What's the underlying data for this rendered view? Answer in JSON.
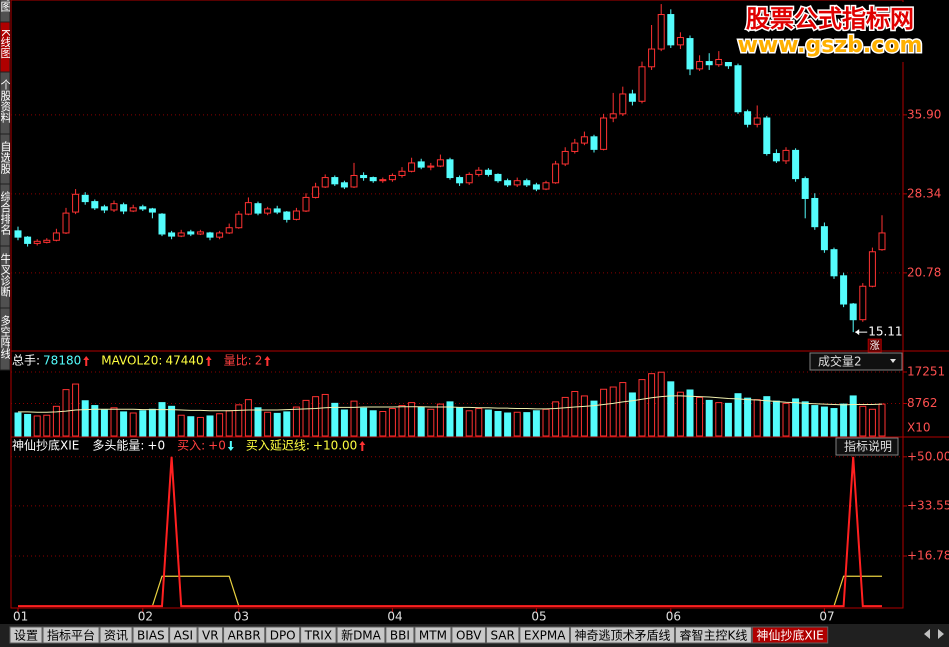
{
  "chart_data": [
    {
      "type": "candlestick",
      "up_color": "#ff3232",
      "down_color": "#54fcfc",
      "tag": "涨",
      "ylim": [
        13.4,
        46.7
      ],
      "yticks": [
        20.78,
        28.34,
        {
          "value": 35.9,
          "label": "35.90"
        }
      ],
      "grid": true,
      "open": [
        24.8,
        24.2,
        23.6,
        23.7,
        23.9,
        24.6,
        26.6,
        28.2,
        27.6,
        27.1,
        26.8,
        27.3,
        26.7,
        27.1,
        26.9,
        26.4,
        24.6,
        24.3,
        24.7,
        24.5,
        24.6,
        24.2,
        24.6,
        25.1,
        26.4,
        27.4,
        26.5,
        26.9,
        26.6,
        25.9,
        26.7,
        28.0,
        29.0,
        29.9,
        29.4,
        29.0,
        30.1,
        29.9,
        29.6,
        29.7,
        30.1,
        30.5,
        31.4,
        30.9,
        31.0,
        31.6,
        29.9,
        29.4,
        30.2,
        30.6,
        30.2,
        29.6,
        29.2,
        29.6,
        29.2,
        28.8,
        29.4,
        31.2,
        32.4,
        33.2,
        33.8,
        32.6,
        35.6,
        36.0,
        37.9,
        37.2,
        40.5,
        42.2,
        45.5,
        42.6,
        43.2,
        40.3,
        41.0,
        40.7,
        41.2,
        40.6,
        36.2,
        35.0,
        35.6,
        32.2,
        31.5,
        32.5,
        29.8,
        27.9,
        25.2,
        23.0,
        20.5,
        17.8,
        16.3,
        19.5,
        23.0
      ],
      "high": [
        25.2,
        24.3,
        24.0,
        24.1,
        25.0,
        27.0,
        28.8,
        28.5,
        27.8,
        27.3,
        27.7,
        27.5,
        27.3,
        27.3,
        27.0,
        26.5,
        24.8,
        24.9,
        24.9,
        24.9,
        24.7,
        24.8,
        25.5,
        26.7,
        28.0,
        27.6,
        27.1,
        27.2,
        26.7,
        27.0,
        28.4,
        29.4,
        30.2,
        30.1,
        29.6,
        31.3,
        30.4,
        30.0,
        29.9,
        30.3,
        30.9,
        31.8,
        31.7,
        31.3,
        32.1,
        31.8,
        30.1,
        30.4,
        30.9,
        30.8,
        30.3,
        29.8,
        29.9,
        29.8,
        29.4,
        29.6,
        31.5,
        32.8,
        33.6,
        34.3,
        34.0,
        36.0,
        38.0,
        38.6,
        38.3,
        41.0,
        44.5,
        46.5,
        46.0,
        43.8,
        43.5,
        41.6,
        41.8,
        42.0,
        41.5,
        40.8,
        36.4,
        36.8,
        35.8,
        32.6,
        32.8,
        32.7,
        30.0,
        28.4,
        25.6,
        23.2,
        20.8,
        17.9,
        19.8,
        23.2,
        26.3
      ],
      "low": [
        23.9,
        23.3,
        23.4,
        23.6,
        23.8,
        24.5,
        26.4,
        27.3,
        26.8,
        26.5,
        26.6,
        26.4,
        26.6,
        26.7,
        26.0,
        24.3,
        24.0,
        24.2,
        24.3,
        24.4,
        23.9,
        24.0,
        24.5,
        25.0,
        26.3,
        26.3,
        26.3,
        26.4,
        25.6,
        25.8,
        26.6,
        27.9,
        28.9,
        29.1,
        28.8,
        28.9,
        29.6,
        29.4,
        29.4,
        29.5,
        29.9,
        30.4,
        30.7,
        30.6,
        30.9,
        29.7,
        29.1,
        29.2,
        30.0,
        30.0,
        29.4,
        29.0,
        29.0,
        29.0,
        28.6,
        28.7,
        29.3,
        31.0,
        32.2,
        33.0,
        32.3,
        32.5,
        35.2,
        35.8,
        36.8,
        37.0,
        40.2,
        42.0,
        42.3,
        42.2,
        39.7,
        40.1,
        40.2,
        40.5,
        40.3,
        36.0,
        34.7,
        34.7,
        32.0,
        31.3,
        31.2,
        29.5,
        26.0,
        24.9,
        22.7,
        20.2,
        17.5,
        15.11,
        16.1,
        19.4,
        22.9
      ],
      "close": [
        24.2,
        23.6,
        23.8,
        23.9,
        24.6,
        26.5,
        28.3,
        27.6,
        27.0,
        26.8,
        27.4,
        26.7,
        27.0,
        26.9,
        26.6,
        24.5,
        24.3,
        24.6,
        24.5,
        24.7,
        24.2,
        24.6,
        25.1,
        26.4,
        27.5,
        26.5,
        26.9,
        26.6,
        25.9,
        26.7,
        28.0,
        29.0,
        29.9,
        29.3,
        29.0,
        30.1,
        29.9,
        29.6,
        29.7,
        30.1,
        30.5,
        31.3,
        30.9,
        31.0,
        31.6,
        29.9,
        29.4,
        30.2,
        30.6,
        30.2,
        29.6,
        29.2,
        29.6,
        29.2,
        28.8,
        29.4,
        31.2,
        32.4,
        33.2,
        33.8,
        32.6,
        35.6,
        36.0,
        37.9,
        37.2,
        40.5,
        42.2,
        45.5,
        42.6,
        43.3,
        40.3,
        41.0,
        40.7,
        41.2,
        40.6,
        36.2,
        35.0,
        35.6,
        32.2,
        31.5,
        32.5,
        29.8,
        27.9,
        25.2,
        23.0,
        20.5,
        17.8,
        16.3,
        19.5,
        22.8,
        24.6
      ]
    },
    {
      "type": "bar",
      "button": "成交量2",
      "unit": "X10",
      "header": [
        {
          "label": "总手:",
          "value": 78180,
          "color": "#54fcfc",
          "arrow": "up"
        },
        {
          "label": "MAVOL20:",
          "value": 47440,
          "color": "#ffff40",
          "arrow": "up"
        },
        {
          "label": "量比:",
          "value": 2,
          "color": "#ff4040",
          "arrow": "up"
        }
      ],
      "ylim": [
        0,
        22640
      ],
      "yticks": [
        8762,
        17251
      ],
      "grid": true,
      "series": [
        {
          "color": "#54fcfc",
          "values": [
            6200,
            5800,
            5400,
            5600,
            8000,
            12500,
            14000,
            9500,
            8200,
            7000,
            7600,
            6500,
            6200,
            6800,
            7200,
            9000,
            8000,
            5600,
            5200,
            5000,
            5400,
            6000,
            6800,
            8400,
            9800,
            7600,
            6400,
            6100,
            6500,
            7800,
            9600,
            10600,
            11200,
            8800,
            7000,
            9400,
            7500,
            6800,
            6600,
            7400,
            8200,
            9000,
            7800,
            7200,
            8600,
            9200,
            7600,
            6800,
            7400,
            7000,
            6600,
            6200,
            6400,
            6300,
            6800,
            7200,
            9200,
            10400,
            12000,
            10800,
            9400,
            12600,
            13200,
            14400,
            11600,
            15200,
            16800,
            17200,
            14600,
            11800,
            12400,
            10400,
            9600,
            9000,
            8800,
            11400,
            10200,
            9800,
            10600,
            9400,
            8800,
            10000,
            9200,
            8200,
            7800,
            7400,
            8600,
            10800,
            8000,
            7200,
            8600
          ]
        },
        {
          "type": "line",
          "color": "#f0f0b0",
          "values": [
            6500,
            6500,
            6400,
            6400,
            6500,
            6700,
            7000,
            7100,
            7200,
            7200,
            7200,
            7200,
            7200,
            7100,
            7100,
            7100,
            7100,
            7000,
            6900,
            6900,
            6800,
            6800,
            6800,
            6900,
            7000,
            7000,
            7000,
            7000,
            7100,
            7200,
            7300,
            7400,
            7600,
            7700,
            7700,
            7700,
            7800,
            7800,
            7800,
            7800,
            7900,
            7900,
            7900,
            7800,
            7800,
            7800,
            7700,
            7700,
            7600,
            7600,
            7500,
            7500,
            7400,
            7400,
            7300,
            7300,
            7400,
            7600,
            7800,
            8000,
            8200,
            8500,
            8800,
            9200,
            9500,
            9900,
            10300,
            10600,
            10800,
            10800,
            10700,
            10600,
            10500,
            10300,
            10100,
            10000,
            9800,
            9700,
            9500,
            9300,
            9100,
            9000,
            8800,
            8700,
            8600,
            8500,
            8400,
            8500,
            8500,
            8500,
            8600
          ]
        }
      ]
    },
    {
      "type": "line",
      "button": "指标说明",
      "header": [
        {
          "label": "神仙抄底XIE",
          "color": "#ffffff"
        },
        {
          "label": "多头能量:",
          "value": "+0",
          "color": "#ffffff"
        },
        {
          "label": "买入:",
          "value": "+0",
          "color": "#ff4040",
          "arrow": "down"
        },
        {
          "label": "买入延迟线:",
          "value": "+10.00",
          "color": "#ffff40",
          "arrow": "up"
        }
      ],
      "categories": [
        "01",
        null,
        null,
        null,
        null,
        null,
        null,
        null,
        null,
        null,
        null,
        null,
        null,
        "02",
        null,
        null,
        null,
        null,
        null,
        null,
        null,
        null,
        null,
        "03",
        null,
        null,
        null,
        null,
        null,
        null,
        null,
        null,
        null,
        null,
        null,
        null,
        null,
        null,
        null,
        "04",
        null,
        null,
        null,
        null,
        null,
        null,
        null,
        null,
        null,
        null,
        null,
        null,
        null,
        null,
        "05",
        null,
        null,
        null,
        null,
        null,
        null,
        null,
        null,
        null,
        null,
        null,
        null,
        null,
        "06",
        null,
        null,
        null,
        null,
        null,
        null,
        null,
        null,
        null,
        null,
        null,
        null,
        null,
        null,
        null,
        "07",
        null,
        null,
        null,
        null,
        null,
        null
      ],
      "ylim": [
        -0.3,
        56.3
      ],
      "yticks": [
        {
          "value": 16.78,
          "label": "+16.78"
        },
        {
          "value": 33.55,
          "label": "+33.55"
        },
        {
          "value": 50,
          "label": "+50.00"
        }
      ],
      "grid": true,
      "series": [
        {
          "color": "#e8d040",
          "values": [
            0,
            0,
            0,
            0,
            0,
            0,
            0,
            0,
            0,
            0,
            0,
            0,
            0,
            0,
            0,
            10,
            10,
            10,
            10,
            10,
            10,
            10,
            10,
            0,
            0,
            0,
            0,
            0,
            0,
            0,
            0,
            0,
            0,
            0,
            0,
            0,
            0,
            0,
            0,
            0,
            0,
            0,
            0,
            0,
            0,
            0,
            0,
            0,
            0,
            0,
            0,
            0,
            0,
            0,
            0,
            0,
            0,
            0,
            0,
            0,
            0,
            0,
            0,
            0,
            0,
            0,
            0,
            0,
            0,
            0,
            0,
            0,
            0,
            0,
            0,
            0,
            0,
            0,
            0,
            0,
            0,
            0,
            0,
            0,
            0,
            0,
            10,
            10,
            10,
            10,
            10
          ]
        },
        {
          "color": "#ff2020",
          "values": [
            0,
            0,
            0,
            0,
            0,
            0,
            0,
            0,
            0,
            0,
            0,
            0,
            0,
            0,
            0,
            0,
            50,
            0,
            0,
            0,
            0,
            0,
            0,
            0,
            0,
            0,
            0,
            0,
            0,
            0,
            0,
            0,
            0,
            0,
            0,
            0,
            0,
            0,
            0,
            0,
            0,
            0,
            0,
            0,
            0,
            0,
            0,
            0,
            0,
            0,
            0,
            0,
            0,
            0,
            0,
            0,
            0,
            0,
            0,
            0,
            0,
            0,
            0,
            0,
            0,
            0,
            0,
            0,
            0,
            0,
            0,
            0,
            0,
            0,
            0,
            0,
            0,
            0,
            0,
            0,
            0,
            0,
            0,
            0,
            0,
            0,
            0,
            50,
            0,
            0,
            0
          ]
        }
      ]
    }
  ],
  "watermark": {
    "title": "股票公式指标网",
    "url": "www.gszb.com"
  },
  "sidebar": [
    {
      "label": "分时图"
    },
    {
      "label": "K线图",
      "active": true
    },
    {
      "label": "个股资料"
    },
    {
      "label": "自选股"
    },
    {
      "label": "综合排名"
    },
    {
      "label": "牛叉诊断"
    },
    {
      "label": "多空阵线"
    }
  ],
  "tabs": [
    {
      "label": "设置"
    },
    {
      "label": "指标平台"
    },
    {
      "label": "资讯"
    },
    {
      "label": "BIAS"
    },
    {
      "label": "ASI"
    },
    {
      "label": "VR"
    },
    {
      "label": "ARBR"
    },
    {
      "label": "DPO"
    },
    {
      "label": "TRIX"
    },
    {
      "label": "新DMA"
    },
    {
      "label": "BBI"
    },
    {
      "label": "MTM"
    },
    {
      "label": "OBV"
    },
    {
      "label": "SAR"
    },
    {
      "label": "EXPMA"
    },
    {
      "label": "神奇逃顶术矛盾线"
    },
    {
      "label": "睿智主控K线"
    },
    {
      "label": "神仙抄底XIE",
      "active": true
    }
  ]
}
